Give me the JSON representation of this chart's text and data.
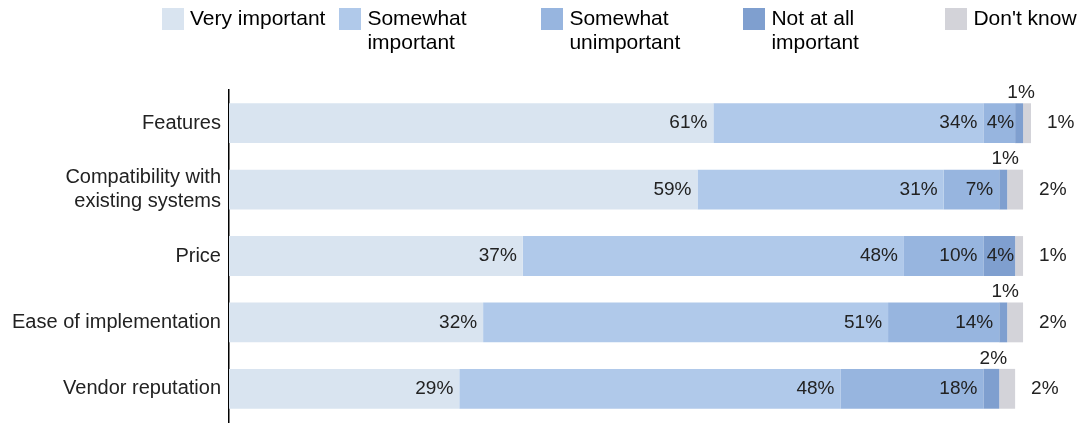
{
  "chart_data": {
    "type": "bar",
    "orientation": "horizontal",
    "stacked": true,
    "legend": "top",
    "categories": [
      "Features",
      "Compatibility with existing systems",
      "Price",
      "Ease of implementation",
      "Vendor reputation"
    ],
    "series": [
      {
        "name": "Very important",
        "color": "#d9e4f0",
        "values": [
          61,
          59,
          37,
          32,
          29
        ],
        "value_labels": [
          "61%",
          "59%",
          "37%",
          "32%",
          "29%"
        ]
      },
      {
        "name": "Somewhat important",
        "color": "#b0c9ea",
        "values": [
          34,
          31,
          48,
          51,
          48
        ],
        "value_labels": [
          "34%",
          "31%",
          "48%",
          "51%",
          "48%"
        ]
      },
      {
        "name": "Somewhat unimportant",
        "color": "#97b5df",
        "values": [
          4,
          7,
          10,
          14,
          18
        ],
        "value_labels": [
          "4%",
          "7%",
          "10%",
          "14%",
          "18%"
        ]
      },
      {
        "name": "Not at all important",
        "color": "#7f9fcf",
        "values": [
          1,
          1,
          4,
          1,
          2
        ],
        "value_labels": [
          "1%",
          "1%",
          "4%",
          "1%",
          "2%"
        ]
      },
      {
        "name": "Don't know",
        "color": "#d3d3d9",
        "values": [
          1,
          2,
          1,
          2,
          2
        ],
        "value_labels": [
          "1%",
          "2%",
          "1%",
          "2%",
          "2%"
        ]
      }
    ]
  }
}
